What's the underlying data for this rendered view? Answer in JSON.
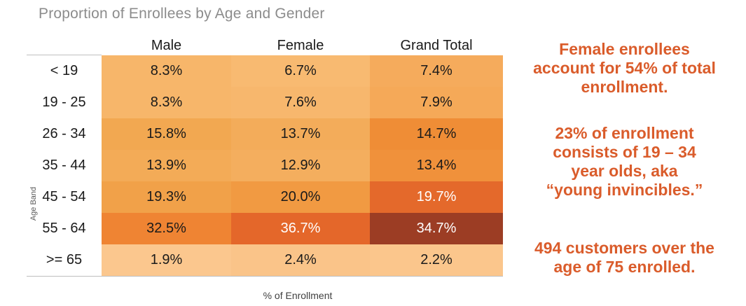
{
  "title": "Proportion of Enrollees by Age and Gender",
  "colors": {
    "title_gray": "#8C8C8C",
    "annotation_orange": "#DA5C2B",
    "cell_text_dark": "#1A1A1A",
    "cell_text_light": "#FFFFFF"
  },
  "chart_data": {
    "type": "heatmap",
    "title": "Proportion of Enrollees by Age and Gender",
    "xlabel": "% of Enrollment",
    "ylabel": "Age Band",
    "categories": [
      "< 19",
      "19 - 25",
      "26 - 34",
      "35 - 44",
      "45 - 54",
      "55 - 64",
      ">= 65"
    ],
    "series": [
      {
        "name": "Male",
        "values": [
          8.3,
          8.3,
          15.8,
          13.9,
          19.3,
          32.5,
          1.9
        ]
      },
      {
        "name": "Female",
        "values": [
          6.7,
          7.6,
          13.7,
          12.9,
          20.0,
          36.7,
          2.4
        ]
      },
      {
        "name": "Grand Total",
        "values": [
          7.4,
          7.9,
          14.7,
          13.4,
          19.7,
          34.7,
          2.2
        ]
      }
    ],
    "unit": "%",
    "legend": "none",
    "color_scale": {
      "low": "#FBC78E",
      "mid": "#EF8433",
      "high": "#9C3D24"
    }
  },
  "table": {
    "columns": [
      "Male",
      "Female",
      "Grand Total"
    ],
    "rows": [
      {
        "label": "< 19",
        "cells": [
          {
            "text": "8.3%",
            "bg": "#F7B66A",
            "fg": "#1A1A1A"
          },
          {
            "text": "6.7%",
            "bg": "#F8BA71",
            "fg": "#1A1A1A"
          },
          {
            "text": "7.4%",
            "bg": "#F5AB5C",
            "fg": "#1A1A1A"
          }
        ]
      },
      {
        "label": "19 - 25",
        "cells": [
          {
            "text": "8.3%",
            "bg": "#F7B66A",
            "fg": "#1A1A1A"
          },
          {
            "text": "7.6%",
            "bg": "#F7B76D",
            "fg": "#1A1A1A"
          },
          {
            "text": "7.9%",
            "bg": "#F5A958",
            "fg": "#1A1A1A"
          }
        ]
      },
      {
        "label": "26 - 34",
        "cells": [
          {
            "text": "15.8%",
            "bg": "#F2A851",
            "fg": "#1A1A1A"
          },
          {
            "text": "13.7%",
            "bg": "#F3AC5A",
            "fg": "#1A1A1A"
          },
          {
            "text": "14.7%",
            "bg": "#EF8D36",
            "fg": "#1A1A1A"
          }
        ]
      },
      {
        "label": "35 - 44",
        "cells": [
          {
            "text": "13.9%",
            "bg": "#F3AB57",
            "fg": "#1A1A1A"
          },
          {
            "text": "12.9%",
            "bg": "#F4AE5E",
            "fg": "#1A1A1A"
          },
          {
            "text": "13.4%",
            "bg": "#F0913B",
            "fg": "#1A1A1A"
          }
        ]
      },
      {
        "label": "45 - 54",
        "cells": [
          {
            "text": "19.3%",
            "bg": "#F1A149",
            "fg": "#1A1A1A"
          },
          {
            "text": "20.0%",
            "bg": "#F19A42",
            "fg": "#1A1A1A"
          },
          {
            "text": "19.7%",
            "bg": "#E4692B",
            "fg": "#FFFFFF"
          }
        ]
      },
      {
        "label": "55 - 64",
        "cells": [
          {
            "text": "32.5%",
            "bg": "#EF8433",
            "fg": "#1A1A1A"
          },
          {
            "text": "36.7%",
            "bg": "#E4672A",
            "fg": "#FFFFFF"
          },
          {
            "text": "34.7%",
            "bg": "#9C3D24",
            "fg": "#FFFFFF"
          }
        ]
      },
      {
        "label": ">= 65",
        "cells": [
          {
            "text": "1.9%",
            "bg": "#FBC78E",
            "fg": "#1A1A1A"
          },
          {
            "text": "2.4%",
            "bg": "#FAC489",
            "fg": "#1A1A1A"
          },
          {
            "text": "2.2%",
            "bg": "#FBC68C",
            "fg": "#1A1A1A"
          }
        ]
      }
    ],
    "ylabel": "Age Band",
    "xlabel": "% of Enrollment"
  },
  "annotations": [
    {
      "lines": [
        "Female enrollees",
        "account for 54% of total",
        "enrollment."
      ]
    },
    {
      "lines": [
        "23% of enrollment",
        "consists of 19 – 34",
        "year olds, aka",
        "“young invincibles.”"
      ]
    },
    {
      "lines": [
        "494 customers over the",
        "age of 75 enrolled."
      ]
    }
  ]
}
